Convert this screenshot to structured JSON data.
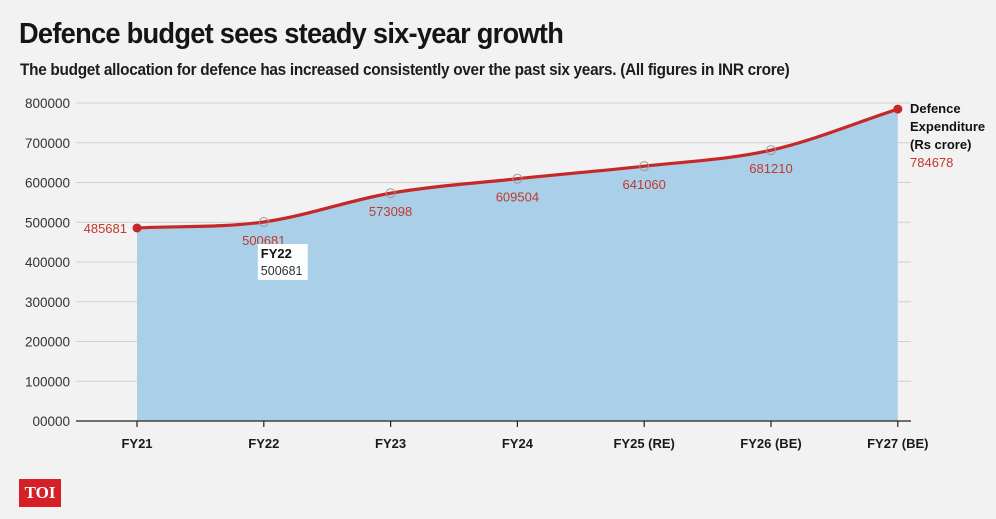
{
  "header": {
    "title": "Defence budget sees steady six-year growth",
    "subtitle": "The budget allocation for defence has increased consistently over the past six years. (All figures in INR crore)"
  },
  "brand": {
    "logo_text": "TOI"
  },
  "colors": {
    "line": "#c62828",
    "area": "#a9d0e8",
    "label": "#c0392b",
    "background": "#f2f2f2"
  },
  "chart_data": {
    "type": "area",
    "title": "Defence budget sees steady six-year growth",
    "categories": [
      "FY21",
      "FY22",
      "FY23",
      "FY24",
      "FY25 (RE)",
      "FY26 (BE)",
      "FY27 (BE)"
    ],
    "series": [
      {
        "name": "Defence Expenditure (Rs crore)",
        "values": [
          485681,
          500681,
          573098,
          609504,
          641060,
          681210,
          784678
        ]
      }
    ],
    "ytick_labels": [
      "00000",
      "100000",
      "200000",
      "300000",
      "400000",
      "500000",
      "600000",
      "700000",
      "800000"
    ],
    "ylim": [
      0,
      800000
    ],
    "grid": true,
    "legend": {
      "lines": [
        "Defence",
        "Expenditure",
        "(Rs crore)"
      ],
      "value": "784678",
      "placement": "right"
    },
    "tooltip": {
      "category": "FY22",
      "value": "500681"
    }
  }
}
